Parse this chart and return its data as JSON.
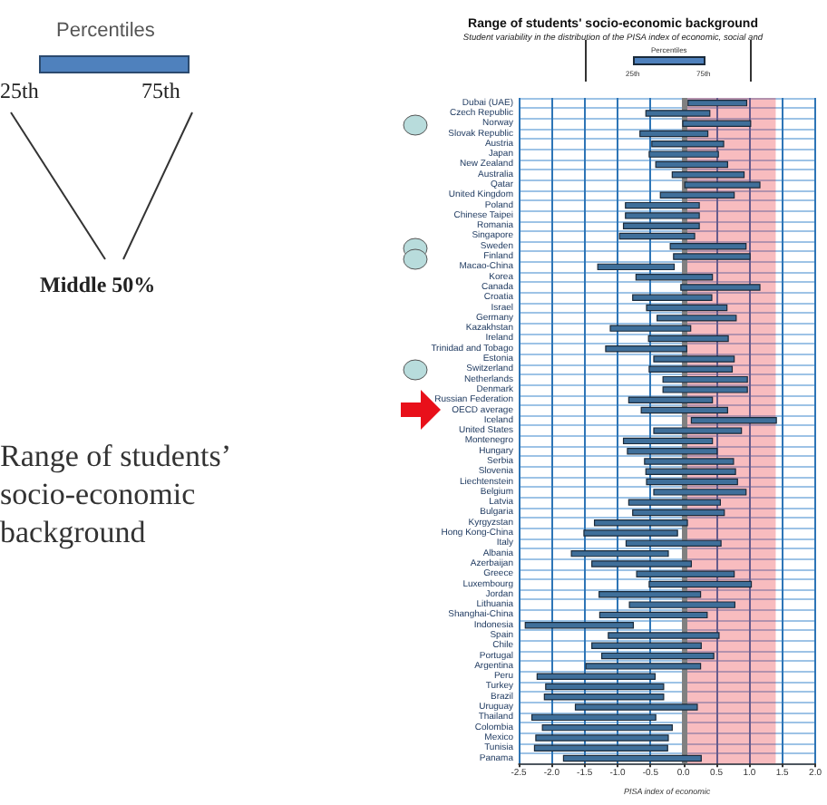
{
  "chart_data": {
    "type": "bar",
    "orientation": "horizontal",
    "title": "Range of students' socio-economic background",
    "subtitle": "Student variability in the distribution of the PISA index of economic, social and",
    "xlabel": "PISA index of economic",
    "categories": [
      "Dubai (UAE)",
      "Czech Republic",
      "Norway",
      "Slovak Republic",
      "Austria",
      "Japan",
      "New Zealand",
      "Australia",
      "Qatar",
      "United Kingdom",
      "Poland",
      "Chinese Taipei",
      "Romania",
      "Singapore",
      "Sweden",
      "Finland",
      "Macao-China",
      "Korea",
      "Canada",
      "Croatia",
      "Israel",
      "Germany",
      "Kazakhstan",
      "Ireland",
      "Trinidad and Tobago",
      "Estonia",
      "Switzerland",
      "Netherlands",
      "Denmark",
      "Russian Federation",
      "OECD average",
      "Iceland",
      "United States",
      "Montenegro",
      "Hungary",
      "Serbia",
      "Slovenia",
      "Liechtenstein",
      "Belgium",
      "Latvia",
      "Bulgaria",
      "Kyrgyzstan",
      "Hong Kong-China",
      "Italy",
      "Albania",
      "Azerbaijan",
      "Greece",
      "Luxembourg",
      "Jordan",
      "Lithuania",
      "Shanghai-China",
      "Indonesia",
      "Spain",
      "Chile",
      "Portugal",
      "Argentina",
      "Peru",
      "Turkey",
      "Brazil",
      "Uruguay",
      "Thailand",
      "Colombia",
      "Mexico",
      "Tunisia",
      "Panama"
    ],
    "base": [
      0.07,
      -0.57,
      -0.01,
      -0.66,
      -0.48,
      -0.52,
      -0.42,
      -0.17,
      0.02,
      -0.35,
      -0.88,
      -0.88,
      -0.91,
      -0.97,
      -0.2,
      -0.15,
      -1.3,
      -0.72,
      -0.04,
      -0.77,
      -0.56,
      -0.4,
      -1.11,
      -0.53,
      -1.18,
      -0.45,
      -0.52,
      -0.31,
      -0.31,
      -0.83,
      -0.64,
      0.12,
      -0.45,
      -0.91,
      -0.85,
      -0.59,
      -0.57,
      -0.56,
      -0.45,
      -0.83,
      -0.77,
      -1.35,
      -1.51,
      -0.87,
      -1.7,
      -1.39,
      -0.71,
      -0.52,
      -1.28,
      -0.82,
      -1.27,
      -2.4,
      -1.14,
      -1.39,
      -1.24,
      -1.48,
      -2.22,
      -2.09,
      -2.11,
      -1.64,
      -2.3,
      -2.14,
      -2.24,
      -2.26,
      -1.82
    ],
    "values": [
      0.89,
      0.97,
      1.03,
      1.03,
      1.09,
      1.05,
      1.09,
      1.09,
      1.14,
      1.12,
      1.12,
      1.12,
      1.15,
      1.14,
      1.15,
      1.16,
      1.16,
      1.16,
      1.2,
      1.2,
      1.22,
      1.2,
      1.22,
      1.21,
      1.23,
      1.22,
      1.26,
      1.28,
      1.28,
      1.27,
      1.31,
      1.29,
      1.33,
      1.35,
      1.36,
      1.35,
      1.36,
      1.38,
      1.4,
      1.39,
      1.39,
      1.41,
      1.42,
      1.44,
      1.47,
      1.51,
      1.48,
      1.55,
      1.54,
      1.6,
      1.63,
      1.64,
      1.68,
      1.66,
      1.7,
      1.74,
      1.79,
      1.79,
      1.81,
      1.85,
      1.88,
      1.97,
      2.01,
      2.02,
      2.09
    ],
    "color": "#3f6f9a",
    "xlim": [
      -2.5,
      2.0
    ],
    "xticks": [
      {
        "value": -2.5,
        "label": "-2.5"
      },
      {
        "value": -2,
        "label": "-2.0"
      },
      {
        "value": -1.5,
        "label": "-1.5"
      },
      {
        "value": -1,
        "label": "-1.0"
      },
      {
        "value": -0.5,
        "label": "-0.5"
      },
      {
        "value": 0,
        "label": "0.0"
      },
      {
        "value": 0.5,
        "label": "0.5"
      },
      {
        "value": 1,
        "label": "1.0"
      },
      {
        "value": 1.5,
        "label": "1.5"
      },
      {
        "value": 2,
        "label": "2.0"
      }
    ],
    "bands": [
      {
        "axis": "x",
        "from": 0.05,
        "to": 1.4,
        "color": "#e8202a"
      }
    ],
    "ref_lines": [
      {
        "axis": "x",
        "value": 0,
        "color": "#808080"
      }
    ],
    "grid": true,
    "annotations": [
      "Percentiles",
      "25th",
      "75th",
      "Middle 50%",
      "Range of students’ socio-economic background",
      "Percentiles",
      "25th",
      "75th"
    ]
  }
}
